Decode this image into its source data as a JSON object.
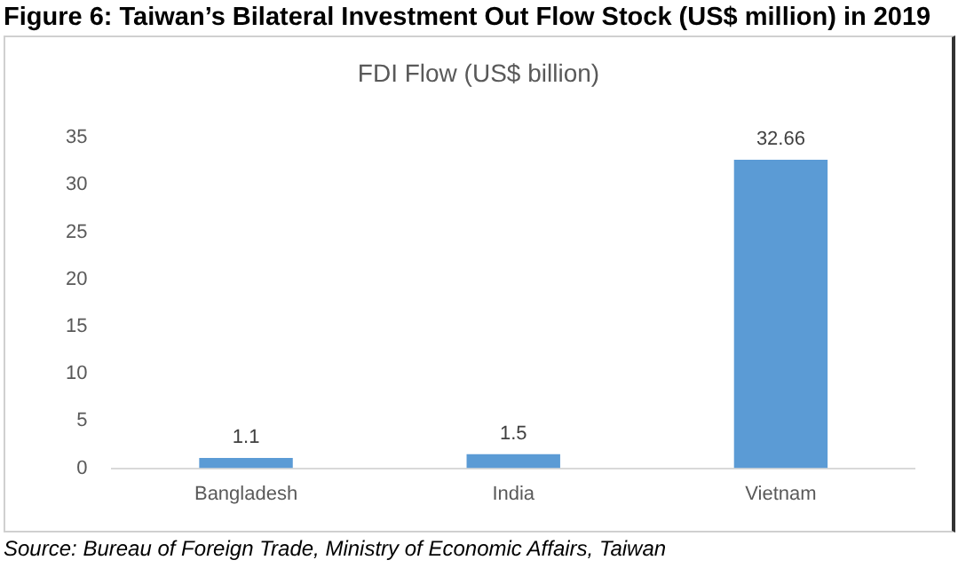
{
  "chart_data": {
    "type": "bar",
    "title": "Figure 6: Taiwan’s Bilateral Investment Out Flow Stock (US$ million) in 2019",
    "subtitle": "FDI Flow (US$ billion)",
    "categories": [
      "Bangladesh",
      "India",
      "Vietnam"
    ],
    "values": [
      1.1,
      1.5,
      32.66
    ],
    "color": "#5b9bd5",
    "ylim": [
      0,
      35
    ],
    "yticks": [
      0,
      5,
      10,
      15,
      20,
      25,
      30,
      35
    ],
    "grid": false,
    "data_labels": true,
    "annotations": [
      "Source: Bureau of Foreign Trade, Ministry of Economic Affairs, Taiwan"
    ]
  }
}
